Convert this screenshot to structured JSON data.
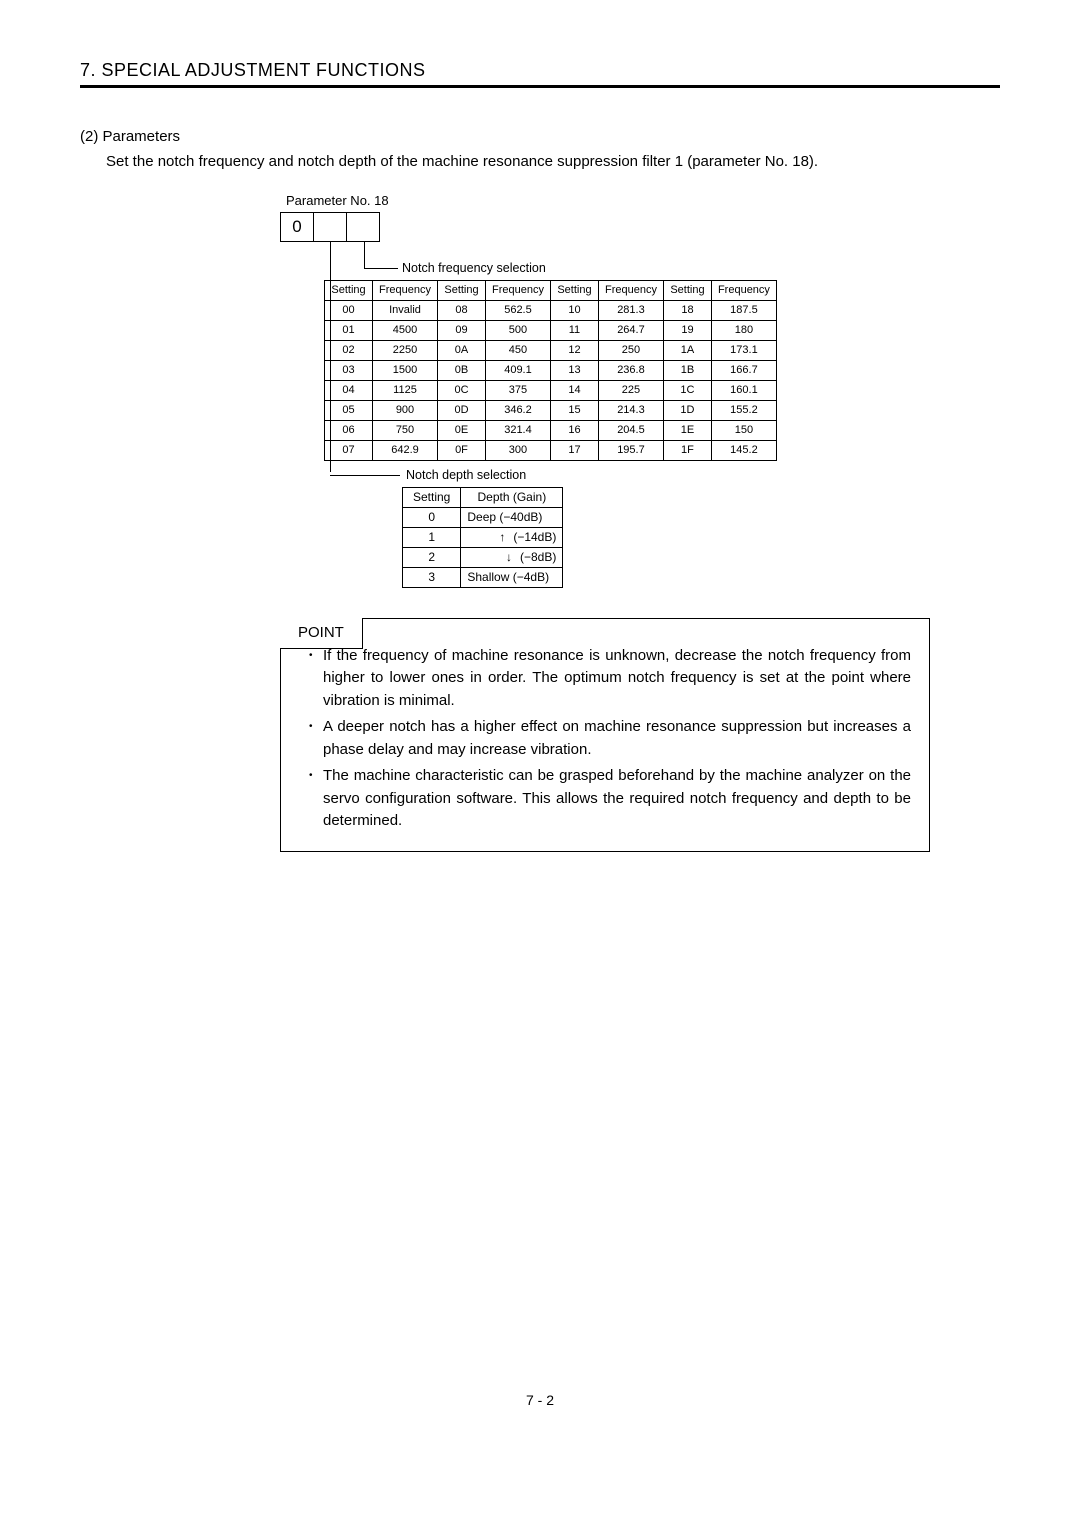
{
  "header": {
    "title": "7. SPECIAL ADJUSTMENT FUNCTIONS"
  },
  "section": {
    "heading": "(2) Parameters",
    "body": "Set the notch frequency and notch depth of the machine resonance suppression filter 1 (parameter No. 18)."
  },
  "param": {
    "label": "Parameter No. 18",
    "box_value": "0"
  },
  "freq": {
    "label": "Notch frequency selection",
    "headers": [
      "Setting",
      "Frequency",
      "Setting",
      "Frequency",
      "Setting",
      "Frequency",
      "Setting",
      "Frequency"
    ],
    "rows": [
      [
        "00",
        "Invalid",
        "08",
        "562.5",
        "10",
        "281.3",
        "18",
        "187.5"
      ],
      [
        "01",
        "4500",
        "09",
        "500",
        "11",
        "264.7",
        "19",
        "180"
      ],
      [
        "02",
        "2250",
        "0A",
        "450",
        "12",
        "250",
        "1A",
        "173.1"
      ],
      [
        "03",
        "1500",
        "0B",
        "409.1",
        "13",
        "236.8",
        "1B",
        "166.7"
      ],
      [
        "04",
        "1125",
        "0C",
        "375",
        "14",
        "225",
        "1C",
        "160.1"
      ],
      [
        "05",
        "900",
        "0D",
        "346.2",
        "15",
        "214.3",
        "1D",
        "155.2"
      ],
      [
        "06",
        "750",
        "0E",
        "321.4",
        "16",
        "204.5",
        "1E",
        "150"
      ],
      [
        "07",
        "642.9",
        "0F",
        "300",
        "17",
        "195.7",
        "1F",
        "145.2"
      ]
    ]
  },
  "depth": {
    "label": "Notch depth selection",
    "headers": [
      "Setting",
      "Depth (Gain)"
    ],
    "rows": [
      {
        "setting": "0",
        "text": "Deep (−40dB)",
        "align": "left"
      },
      {
        "setting": "1",
        "text": "(−14dB)",
        "align": "right",
        "arrow": "up"
      },
      {
        "setting": "2",
        "text": "(−8dB)",
        "align": "right",
        "arrow": "down"
      },
      {
        "setting": "3",
        "text": "Shallow (−4dB)",
        "align": "left"
      }
    ]
  },
  "point": {
    "title": "POINT",
    "items": [
      "If the frequency of machine resonance is unknown, decrease the notch frequency from higher to lower ones in order. The optimum notch frequency is set at the point where vibration is minimal.",
      "A deeper notch has a higher effect on machine resonance suppression but increases a phase delay and may increase vibration.",
      "The machine characteristic can be grasped beforehand by the machine analyzer on the servo configuration software. This allows the required notch frequency and depth to be determined."
    ]
  },
  "footer": {
    "page": "7 -  2"
  }
}
